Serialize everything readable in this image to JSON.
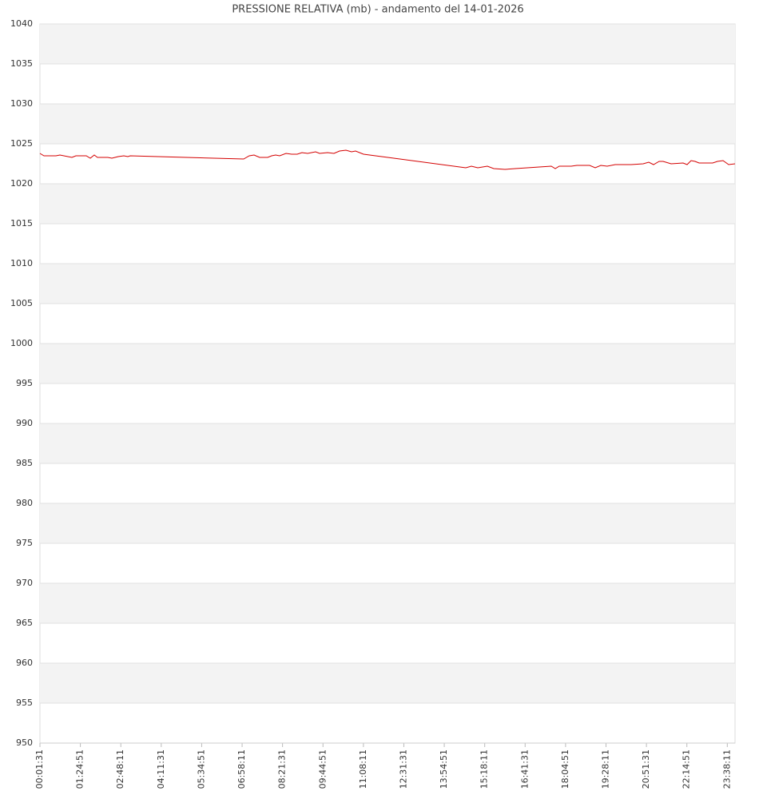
{
  "chart_data": {
    "type": "line",
    "title": "PRESSIONE RELATIVA (mb) - andamento del 14-01-2026",
    "x": [
      "00:01:31",
      "00:09:45",
      "00:34:27",
      "00:42:41",
      "01:07:23",
      "01:15:37",
      "01:37:01",
      "01:45:15",
      "01:53:29",
      "02:00:05",
      "02:21:29",
      "02:29:43",
      "02:42:53",
      "02:54:25",
      "03:02:39",
      "03:07:35",
      "07:01:25",
      "07:12:57",
      "07:22:49",
      "07:34:21",
      "07:50:49",
      "07:59:03",
      "08:07:17",
      "08:15:31",
      "08:28:41",
      "08:40:13",
      "08:51:45",
      "09:01:37",
      "09:13:09",
      "09:29:37",
      "09:37:51",
      "09:54:19",
      "10:07:29",
      "10:19:01",
      "10:32:11",
      "10:43:43",
      "10:51:57",
      "11:08:25",
      "14:39:11",
      "14:50:43",
      "15:03:53",
      "15:23:39",
      "15:36:49",
      "15:59:52",
      "16:21:17",
      "16:45:59",
      "17:10:41",
      "17:35:23",
      "17:43:37",
      "17:51:51",
      "18:16:33",
      "18:28:05",
      "18:54:25",
      "19:05:57",
      "19:17:29",
      "19:30:39",
      "19:47:07",
      "20:03:35",
      "20:20:03",
      "20:44:45",
      "20:56:17",
      "21:06:09",
      "21:17:41",
      "21:25:55",
      "21:42:23",
      "22:07:05",
      "22:15:19",
      "22:23:33",
      "22:31:47",
      "22:40:01",
      "22:48:15",
      "23:08:01",
      "23:17:53",
      "23:29:25",
      "23:40:57",
      "23:54:07"
    ],
    "series": [
      {
        "name": "PRESSIONE RELATIVA",
        "color": "#d40000",
        "values": [
          1023.8,
          1023.5,
          1023.5,
          1023.6,
          1023.3,
          1023.5,
          1023.5,
          1023.2,
          1023.6,
          1023.3,
          1023.3,
          1023.2,
          1023.4,
          1023.5,
          1023.4,
          1023.5,
          1023.1,
          1023.5,
          1023.6,
          1023.3,
          1023.3,
          1023.5,
          1023.6,
          1023.5,
          1023.8,
          1023.7,
          1023.7,
          1023.9,
          1023.8,
          1024.0,
          1023.8,
          1023.9,
          1023.8,
          1024.1,
          1024.2,
          1024.0,
          1024.1,
          1023.7,
          1022.0,
          1022.2,
          1022.0,
          1022.2,
          1021.9,
          1021.8,
          1021.9,
          1022.0,
          1022.1,
          1022.2,
          1021.9,
          1022.2,
          1022.2,
          1022.3,
          1022.3,
          1022.0,
          1022.3,
          1022.2,
          1022.4,
          1022.4,
          1022.4,
          1022.5,
          1022.7,
          1022.4,
          1022.8,
          1022.8,
          1022.5,
          1022.6,
          1022.4,
          1022.9,
          1022.8,
          1022.6,
          1022.6,
          1022.6,
          1022.8,
          1022.9,
          1022.4,
          1022.5
        ]
      }
    ],
    "xlim": [
      "00:01:31",
      "23:54:07"
    ],
    "xticks": [
      "00:01:31",
      "01:24:51",
      "02:48:11",
      "04:11:31",
      "05:34:51",
      "06:58:11",
      "08:21:31",
      "09:44:51",
      "11:08:11",
      "12:31:31",
      "13:54:51",
      "15:18:11",
      "16:41:31",
      "18:04:51",
      "19:28:11",
      "20:51:31",
      "22:14:51",
      "23:38:11"
    ],
    "ylim": [
      950,
      1040
    ],
    "yticks": [
      950,
      955,
      960,
      965,
      970,
      975,
      980,
      985,
      990,
      995,
      1000,
      1005,
      1010,
      1015,
      1020,
      1025,
      1030,
      1035,
      1040
    ],
    "grid": true,
    "bands": true
  }
}
